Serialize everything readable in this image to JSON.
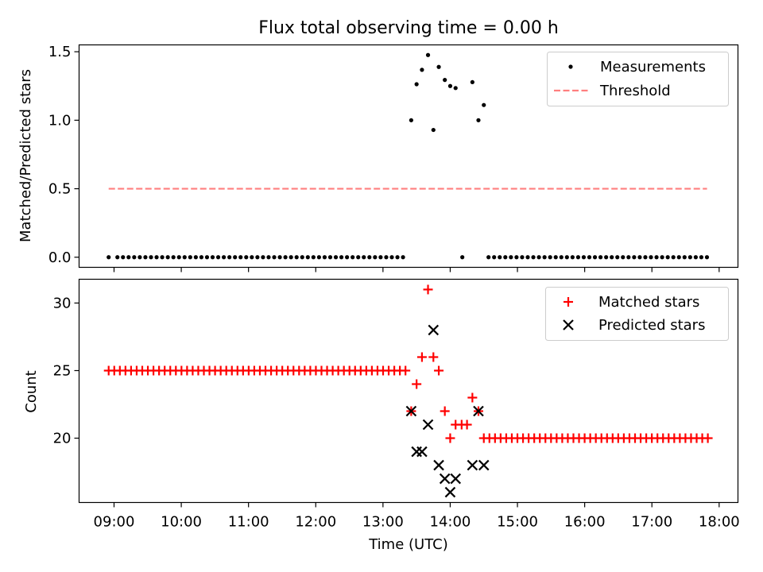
{
  "chart_data": {
    "type": "scatter",
    "title": "Flux total observing time = 0.00 h",
    "xlabel": "Time (UTC)",
    "xlim": [
      8.48,
      18.28
    ],
    "xticks": [
      {
        "value": 9,
        "label": "09:00"
      },
      {
        "value": 10,
        "label": "10:00"
      },
      {
        "value": 11,
        "label": "11:00"
      },
      {
        "value": 12,
        "label": "12:00"
      },
      {
        "value": 13,
        "label": "13:00"
      },
      {
        "value": 14,
        "label": "14:00"
      },
      {
        "value": 15,
        "label": "15:00"
      },
      {
        "value": 16,
        "label": "16:00"
      },
      {
        "value": 17,
        "label": "17:00"
      },
      {
        "value": 18,
        "label": "18:00"
      }
    ],
    "panels": [
      {
        "ylabel": "Matched/Predicted stars",
        "ylim": [
          -0.0738,
          1.55
        ],
        "yticks": [
          {
            "value": 0,
            "label": "0.0"
          },
          {
            "value": 0.5,
            "label": "0.5"
          },
          {
            "value": 1,
            "label": "1.0"
          },
          {
            "value": 1.5,
            "label": "1.5"
          }
        ],
        "legend_position": "top-right",
        "series": [
          {
            "name": "Measurements",
            "marker": "dot",
            "color": "#000000",
            "points": [
              [
                13.42,
                1.0
              ],
              [
                13.5,
                1.263
              ],
              [
                13.58,
                1.368
              ],
              [
                13.67,
                1.476
              ],
              [
                13.75,
                0.929
              ],
              [
                13.83,
                1.389
              ],
              [
                13.92,
                1.294
              ],
              [
                14.0,
                1.25
              ],
              [
                14.08,
                1.235
              ],
              [
                14.33,
                1.278
              ],
              [
                14.42,
                1.0
              ],
              [
                14.5,
                1.111
              ]
            ],
            "baseline": {
              "value": 0,
              "segments": [
                [
                  8.92,
                  8.92
                ],
                [
                  9.05,
                  13.35
                ],
                [
                  14.18,
                  14.25
                ],
                [
                  14.57,
                  17.82
                ]
              ],
              "step": 0.0833
            }
          },
          {
            "name": "Threshold",
            "style": "dashed-line",
            "color": "#ff7f7f",
            "x": [
              8.92,
              17.82
            ],
            "y": [
              0.5,
              0.5
            ]
          }
        ]
      },
      {
        "ylabel": "Count",
        "ylim": [
          15.24,
          31.76
        ],
        "yticks": [
          {
            "value": 20,
            "label": "20"
          },
          {
            "value": 25,
            "label": "25"
          },
          {
            "value": 30,
            "label": "30"
          }
        ],
        "legend_position": "top-right",
        "series": [
          {
            "name": "Matched stars",
            "marker": "plus",
            "color": "#ff0000",
            "points": [
              [
                13.42,
                22
              ],
              [
                13.5,
                24
              ],
              [
                13.58,
                26
              ],
              [
                13.67,
                31
              ],
              [
                13.75,
                26
              ],
              [
                13.83,
                25
              ],
              [
                13.92,
                22
              ],
              [
                14.0,
                20
              ],
              [
                14.08,
                21
              ],
              [
                14.17,
                21
              ],
              [
                14.25,
                21
              ],
              [
                14.33,
                23
              ],
              [
                14.42,
                22
              ]
            ],
            "runs": [
              {
                "value": 25,
                "start": 8.92,
                "end": 13.35,
                "step": 0.0833
              },
              {
                "value": 20,
                "start": 14.5,
                "end": 17.85,
                "step": 0.0833
              }
            ]
          },
          {
            "name": "Predicted stars",
            "marker": "x",
            "color": "#000000",
            "points": [
              [
                13.42,
                22
              ],
              [
                13.5,
                19
              ],
              [
                13.58,
                19
              ],
              [
                13.67,
                21
              ],
              [
                13.75,
                28
              ],
              [
                13.83,
                18
              ],
              [
                13.92,
                17
              ],
              [
                14.0,
                16
              ],
              [
                14.08,
                17
              ],
              [
                14.33,
                18
              ],
              [
                14.42,
                22
              ],
              [
                14.5,
                18
              ]
            ]
          }
        ]
      }
    ]
  }
}
